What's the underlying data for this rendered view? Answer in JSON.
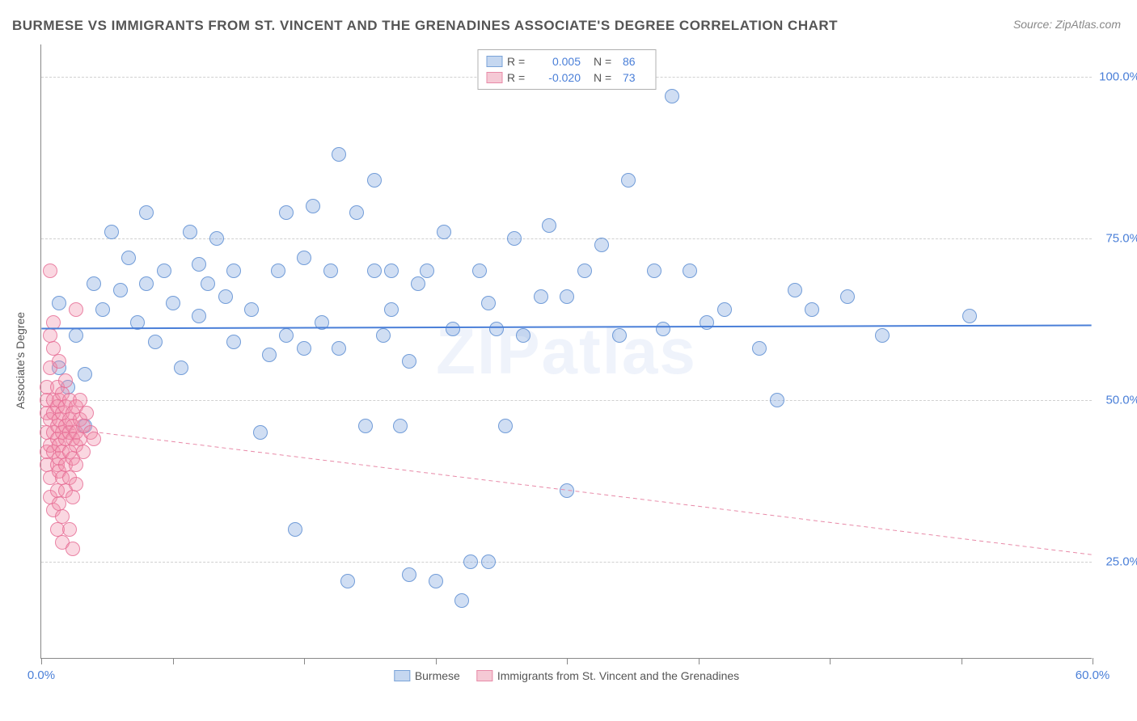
{
  "title": "BURMESE VS IMMIGRANTS FROM ST. VINCENT AND THE GRENADINES ASSOCIATE'S DEGREE CORRELATION CHART",
  "source": "Source: ZipAtlas.com",
  "watermark": "ZIPatlas",
  "y_axis_label": "Associate's Degree",
  "chart": {
    "type": "scatter",
    "xlim": [
      0,
      60
    ],
    "ylim": [
      10,
      105
    ],
    "x_ticks": [
      0,
      7.5,
      15,
      22.5,
      30,
      37.5,
      45,
      52.5,
      60
    ],
    "x_tick_labels": {
      "0": "0.0%",
      "60": "60.0%"
    },
    "y_gridlines": [
      25,
      50,
      75,
      100
    ],
    "y_tick_labels": {
      "25": "25.0%",
      "50": "50.0%",
      "75": "75.0%",
      "100": "100.0%"
    },
    "background_color": "#ffffff",
    "grid_color": "#d0d0d0",
    "grid_dash": "3,3",
    "axis_color": "#888888",
    "tick_label_color": "#4a7fd8",
    "marker_radius": 9,
    "series": [
      {
        "name": "Burmese",
        "fill_color": "rgba(120,160,220,0.35)",
        "stroke_color": "rgba(90,140,210,0.8)",
        "swatch_fill": "#c5d7f0",
        "swatch_border": "#7aa3d8",
        "R": "0.005",
        "N": "86",
        "trend": {
          "x1": 0,
          "y1": 61,
          "x2": 60,
          "y2": 61.5,
          "color": "#4a7fd8",
          "width": 2,
          "dash": "none"
        },
        "points": [
          [
            1,
            65
          ],
          [
            1,
            55
          ],
          [
            1.5,
            52
          ],
          [
            2,
            60
          ],
          [
            2.5,
            54
          ],
          [
            2.5,
            46
          ],
          [
            3,
            68
          ],
          [
            3.5,
            64
          ],
          [
            4,
            76
          ],
          [
            4.5,
            67
          ],
          [
            5,
            72
          ],
          [
            5.5,
            62
          ],
          [
            6,
            79
          ],
          [
            6,
            68
          ],
          [
            6.5,
            59
          ],
          [
            7,
            70
          ],
          [
            7.5,
            65
          ],
          [
            8,
            55
          ],
          [
            8.5,
            76
          ],
          [
            9,
            71
          ],
          [
            9,
            63
          ],
          [
            9.5,
            68
          ],
          [
            10,
            75
          ],
          [
            10.5,
            66
          ],
          [
            11,
            70
          ],
          [
            11,
            59
          ],
          [
            12,
            64
          ],
          [
            12.5,
            45
          ],
          [
            13,
            57
          ],
          [
            13.5,
            70
          ],
          [
            14,
            79
          ],
          [
            14,
            60
          ],
          [
            14.5,
            30
          ],
          [
            15,
            72
          ],
          [
            15,
            58
          ],
          [
            15.5,
            80
          ],
          [
            16,
            62
          ],
          [
            16.5,
            70
          ],
          [
            17,
            58
          ],
          [
            17,
            88
          ],
          [
            17.5,
            22
          ],
          [
            18,
            79
          ],
          [
            18.5,
            46
          ],
          [
            19,
            70
          ],
          [
            19,
            84
          ],
          [
            19.5,
            60
          ],
          [
            20,
            70
          ],
          [
            20,
            64
          ],
          [
            20.5,
            46
          ],
          [
            21,
            56
          ],
          [
            21,
            23
          ],
          [
            21.5,
            68
          ],
          [
            22,
            70
          ],
          [
            22.5,
            22
          ],
          [
            23,
            76
          ],
          [
            23.5,
            61
          ],
          [
            24,
            19
          ],
          [
            24.5,
            25
          ],
          [
            25,
            70
          ],
          [
            25.5,
            65
          ],
          [
            25.5,
            25
          ],
          [
            26,
            61
          ],
          [
            26.5,
            46
          ],
          [
            27,
            75
          ],
          [
            27.5,
            60
          ],
          [
            28.5,
            66
          ],
          [
            29,
            77
          ],
          [
            30,
            36
          ],
          [
            30,
            66
          ],
          [
            31,
            70
          ],
          [
            32,
            74
          ],
          [
            33,
            60
          ],
          [
            33.5,
            84
          ],
          [
            35,
            70
          ],
          [
            35.5,
            61
          ],
          [
            36,
            97
          ],
          [
            37,
            70
          ],
          [
            38,
            62
          ],
          [
            39,
            64
          ],
          [
            41,
            58
          ],
          [
            42,
            50
          ],
          [
            43,
            67
          ],
          [
            44,
            64
          ],
          [
            46,
            66
          ],
          [
            48,
            60
          ],
          [
            53,
            63
          ]
        ]
      },
      {
        "name": "Immigrants from St. Vincent and the Grenadines",
        "fill_color": "rgba(240,140,170,0.35)",
        "stroke_color": "rgba(230,110,150,0.8)",
        "swatch_fill": "#f5c9d5",
        "swatch_border": "#e88aa8",
        "R": "-0.020",
        "N": "73",
        "trend": {
          "x1": 0,
          "y1": 46,
          "x2": 60,
          "y2": 26,
          "color": "#e88aa8",
          "width": 1,
          "dash": "5,4"
        },
        "points": [
          [
            0.3,
            45
          ],
          [
            0.3,
            48
          ],
          [
            0.3,
            50
          ],
          [
            0.3,
            52
          ],
          [
            0.3,
            42
          ],
          [
            0.3,
            40
          ],
          [
            0.5,
            70
          ],
          [
            0.5,
            47
          ],
          [
            0.5,
            43
          ],
          [
            0.5,
            38
          ],
          [
            0.5,
            55
          ],
          [
            0.5,
            60
          ],
          [
            0.5,
            35
          ],
          [
            0.7,
            50
          ],
          [
            0.7,
            45
          ],
          [
            0.7,
            42
          ],
          [
            0.7,
            48
          ],
          [
            0.7,
            33
          ],
          [
            0.7,
            58
          ],
          [
            0.7,
            62
          ],
          [
            0.9,
            44
          ],
          [
            0.9,
            49
          ],
          [
            0.9,
            40
          ],
          [
            0.9,
            46
          ],
          [
            0.9,
            52
          ],
          [
            0.9,
            36
          ],
          [
            0.9,
            30
          ],
          [
            1.0,
            47
          ],
          [
            1.0,
            50
          ],
          [
            1.0,
            43
          ],
          [
            1.0,
            41
          ],
          [
            1.0,
            56
          ],
          [
            1.0,
            39
          ],
          [
            1.0,
            34
          ],
          [
            1.2,
            48
          ],
          [
            1.2,
            45
          ],
          [
            1.2,
            42
          ],
          [
            1.2,
            51
          ],
          [
            1.2,
            38
          ],
          [
            1.2,
            32
          ],
          [
            1.2,
            28
          ],
          [
            1.4,
            46
          ],
          [
            1.4,
            49
          ],
          [
            1.4,
            44
          ],
          [
            1.4,
            40
          ],
          [
            1.4,
            53
          ],
          [
            1.4,
            36
          ],
          [
            1.6,
            47
          ],
          [
            1.6,
            50
          ],
          [
            1.6,
            42
          ],
          [
            1.6,
            45
          ],
          [
            1.6,
            38
          ],
          [
            1.6,
            30
          ],
          [
            1.8,
            48
          ],
          [
            1.8,
            44
          ],
          [
            1.8,
            46
          ],
          [
            1.8,
            41
          ],
          [
            1.8,
            35
          ],
          [
            1.8,
            27
          ],
          [
            2.0,
            64
          ],
          [
            2.0,
            49
          ],
          [
            2.0,
            45
          ],
          [
            2.0,
            43
          ],
          [
            2.0,
            40
          ],
          [
            2.0,
            37
          ],
          [
            2.2,
            47
          ],
          [
            2.2,
            50
          ],
          [
            2.2,
            44
          ],
          [
            2.4,
            46
          ],
          [
            2.4,
            42
          ],
          [
            2.6,
            48
          ],
          [
            2.8,
            45
          ],
          [
            3.0,
            44
          ]
        ]
      }
    ]
  },
  "legend_top": {
    "r_label": "R =",
    "n_label": "N ="
  },
  "legend_bottom_labels": {
    "series1": "Burmese",
    "series2": "Immigrants from St. Vincent and the Grenadines"
  }
}
